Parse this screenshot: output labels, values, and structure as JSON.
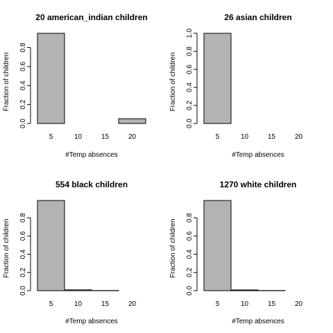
{
  "chart_data": [
    {
      "type": "bar",
      "title": "20 american_indian children",
      "xlabel": "#Temp absences",
      "ylabel": "Fraction of children",
      "categories": [
        "5",
        "10",
        "15",
        "20"
      ],
      "values": [
        0.95,
        0.0,
        0.0,
        0.05
      ],
      "ylim": [
        0,
        0.95
      ],
      "yticks": [
        "0.0",
        "0.2",
        "0.4",
        "0.6",
        "0.8"
      ],
      "xticks": [
        "5",
        "10",
        "15",
        "20"
      ],
      "grid": false
    },
    {
      "type": "bar",
      "title": "26 asian children",
      "xlabel": "#Temp absences",
      "ylabel": "Fraction of children",
      "categories": [
        "5",
        "10",
        "15",
        "20"
      ],
      "values": [
        1.0,
        0.0,
        0.0,
        0.0
      ],
      "ylim": [
        0,
        1.0
      ],
      "yticks": [
        "0.0",
        "0.2",
        "0.4",
        "0.6",
        "0.8",
        "1.0"
      ],
      "xticks": [
        "5",
        "10",
        "15",
        "20"
      ],
      "grid": false
    },
    {
      "type": "bar",
      "title": "554 black children",
      "xlabel": "#Temp absences",
      "ylabel": "Fraction of children",
      "categories": [
        "5",
        "10",
        "15",
        "20"
      ],
      "values": [
        0.99,
        0.009,
        0.002,
        0.0
      ],
      "ylim": [
        0,
        0.99
      ],
      "yticks": [
        "0.0",
        "0.2",
        "0.4",
        "0.6",
        "0.8"
      ],
      "xticks": [
        "5",
        "10",
        "15",
        "20"
      ],
      "grid": false
    },
    {
      "type": "bar",
      "title": "1270 white children",
      "xlabel": "#Temp absences",
      "ylabel": "Fraction of children",
      "categories": [
        "5",
        "10",
        "15",
        "20"
      ],
      "values": [
        0.99,
        0.008,
        0.002,
        0.0
      ],
      "ylim": [
        0,
        0.99
      ],
      "yticks": [
        "0.0",
        "0.2",
        "0.4",
        "0.6",
        "0.8"
      ],
      "xticks": [
        "5",
        "10",
        "15",
        "20"
      ],
      "grid": false
    }
  ]
}
